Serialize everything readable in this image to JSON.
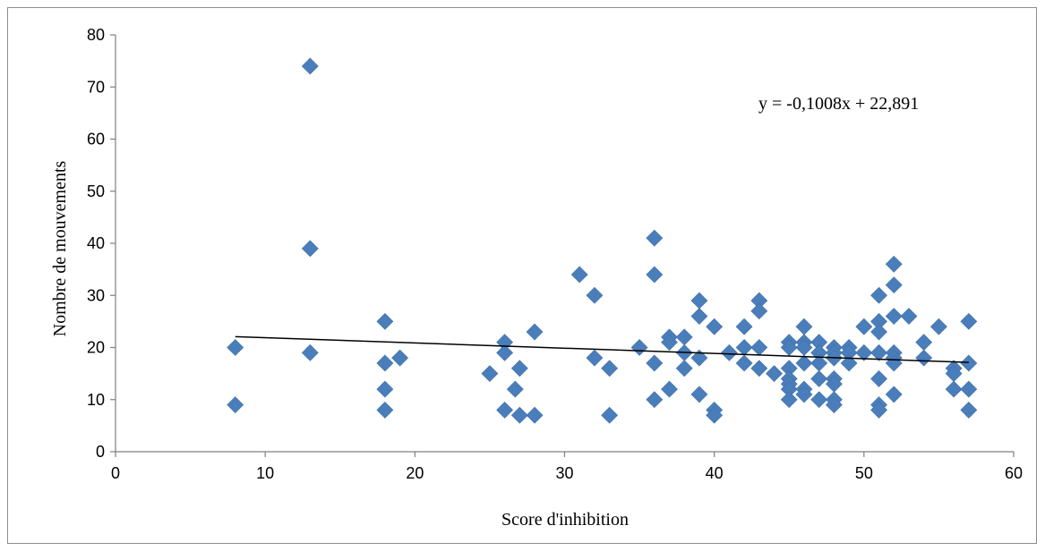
{
  "chart_data": {
    "type": "scatter",
    "title": "",
    "xlabel": "Score d'inhibition",
    "ylabel": "Nombre de mouvements",
    "xlim": [
      0,
      60
    ],
    "ylim": [
      0,
      80
    ],
    "x_ticks": [
      "0",
      "10",
      "20",
      "30",
      "40",
      "50",
      "60"
    ],
    "y_ticks": [
      "0",
      "10",
      "20",
      "30",
      "40",
      "50",
      "60",
      "70",
      "80"
    ],
    "grid": false,
    "legend": "none",
    "marker": "diamond",
    "marker_color": "#4a7ebb",
    "trendline": {
      "equation": "y = -0,1008x + 22,891",
      "slope": -0.1008,
      "intercept": 22.891,
      "x_range": [
        8,
        57
      ],
      "color": "#000000"
    },
    "points": [
      [
        8,
        20
      ],
      [
        8,
        9
      ],
      [
        13,
        74
      ],
      [
        13,
        39
      ],
      [
        13,
        19
      ],
      [
        18,
        25
      ],
      [
        18,
        17
      ],
      [
        18,
        12
      ],
      [
        18,
        8
      ],
      [
        19,
        18
      ],
      [
        25,
        15
      ],
      [
        26,
        21
      ],
      [
        26,
        19
      ],
      [
        26,
        8
      ],
      [
        26.7,
        12
      ],
      [
        27,
        16
      ],
      [
        27,
        7
      ],
      [
        28,
        23
      ],
      [
        28,
        7
      ],
      [
        31,
        34
      ],
      [
        32,
        30
      ],
      [
        32,
        18
      ],
      [
        33,
        16
      ],
      [
        33,
        7
      ],
      [
        35,
        20
      ],
      [
        36,
        41
      ],
      [
        36,
        34
      ],
      [
        36,
        17
      ],
      [
        36,
        10
      ],
      [
        37,
        22
      ],
      [
        37,
        21
      ],
      [
        37,
        12
      ],
      [
        38,
        22
      ],
      [
        38,
        19
      ],
      [
        38,
        16
      ],
      [
        39,
        29
      ],
      [
        39,
        26
      ],
      [
        39,
        18
      ],
      [
        39,
        11
      ],
      [
        40,
        24
      ],
      [
        40,
        8
      ],
      [
        40,
        7
      ],
      [
        41,
        19
      ],
      [
        42,
        24
      ],
      [
        42,
        20
      ],
      [
        42,
        17
      ],
      [
        43,
        29
      ],
      [
        43,
        27
      ],
      [
        43,
        20
      ],
      [
        43,
        16
      ],
      [
        44,
        15
      ],
      [
        45,
        21
      ],
      [
        45,
        20
      ],
      [
        45,
        16
      ],
      [
        45,
        14
      ],
      [
        45,
        13
      ],
      [
        45,
        12
      ],
      [
        45,
        10
      ],
      [
        46,
        24
      ],
      [
        46,
        21
      ],
      [
        46,
        20
      ],
      [
        46,
        17
      ],
      [
        46,
        12
      ],
      [
        46,
        11
      ],
      [
        47,
        21
      ],
      [
        47,
        19
      ],
      [
        47,
        17
      ],
      [
        47,
        14
      ],
      [
        47,
        10
      ],
      [
        48,
        20
      ],
      [
        48,
        19
      ],
      [
        48,
        18
      ],
      [
        48,
        14
      ],
      [
        48,
        13
      ],
      [
        48,
        10
      ],
      [
        48,
        9
      ],
      [
        49,
        20
      ],
      [
        49,
        19
      ],
      [
        49,
        17
      ],
      [
        50,
        24
      ],
      [
        50,
        19
      ],
      [
        51,
        30
      ],
      [
        51,
        25
      ],
      [
        51,
        23
      ],
      [
        51,
        19
      ],
      [
        51,
        14
      ],
      [
        51,
        9
      ],
      [
        51,
        8
      ],
      [
        52,
        36
      ],
      [
        52,
        32
      ],
      [
        52,
        26
      ],
      [
        52,
        19
      ],
      [
        52,
        18
      ],
      [
        52,
        17
      ],
      [
        52,
        11
      ],
      [
        53,
        26
      ],
      [
        54,
        21
      ],
      [
        54,
        18
      ],
      [
        55,
        24
      ],
      [
        56,
        16
      ],
      [
        56,
        15
      ],
      [
        56,
        12
      ],
      [
        57,
        25
      ],
      [
        57,
        17
      ],
      [
        57,
        12
      ],
      [
        57,
        8
      ]
    ]
  }
}
